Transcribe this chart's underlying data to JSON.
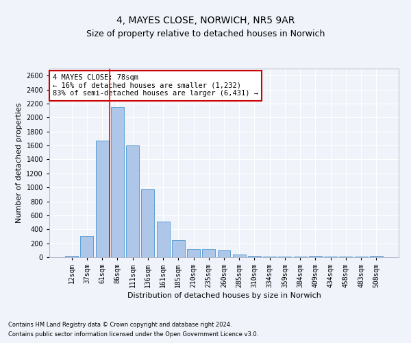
{
  "title": "4, MAYES CLOSE, NORWICH, NR5 9AR",
  "subtitle": "Size of property relative to detached houses in Norwich",
  "xlabel": "Distribution of detached houses by size in Norwich",
  "ylabel": "Number of detached properties",
  "bar_color": "#aec6e8",
  "bar_edge_color": "#5a9fd4",
  "categories": [
    "12sqm",
    "37sqm",
    "61sqm",
    "86sqm",
    "111sqm",
    "136sqm",
    "161sqm",
    "185sqm",
    "210sqm",
    "235sqm",
    "260sqm",
    "285sqm",
    "310sqm",
    "334sqm",
    "359sqm",
    "384sqm",
    "409sqm",
    "434sqm",
    "458sqm",
    "483sqm",
    "508sqm"
  ],
  "values": [
    20,
    300,
    1670,
    2150,
    1600,
    970,
    510,
    245,
    120,
    115,
    95,
    40,
    15,
    10,
    5,
    5,
    18,
    5,
    5,
    5,
    20
  ],
  "ylim": [
    0,
    2700
  ],
  "yticks": [
    0,
    200,
    400,
    600,
    800,
    1000,
    1200,
    1400,
    1600,
    1800,
    2000,
    2200,
    2400,
    2600
  ],
  "annotation_text": "4 MAYES CLOSE: 78sqm\n← 16% of detached houses are smaller (1,232)\n83% of semi-detached houses are larger (6,431) →",
  "annotation_box_color": "#ffffff",
  "annotation_box_edge_color": "#cc0000",
  "footer_line1": "Contains HM Land Registry data © Crown copyright and database right 2024.",
  "footer_line2": "Contains public sector information licensed under the Open Government Licence v3.0.",
  "background_color": "#f0f4fa",
  "grid_color": "#ffffff",
  "title_fontsize": 10,
  "subtitle_fontsize": 9,
  "tick_fontsize": 7,
  "ylabel_fontsize": 8,
  "xlabel_fontsize": 8,
  "footer_fontsize": 6,
  "annotation_fontsize": 7.5
}
